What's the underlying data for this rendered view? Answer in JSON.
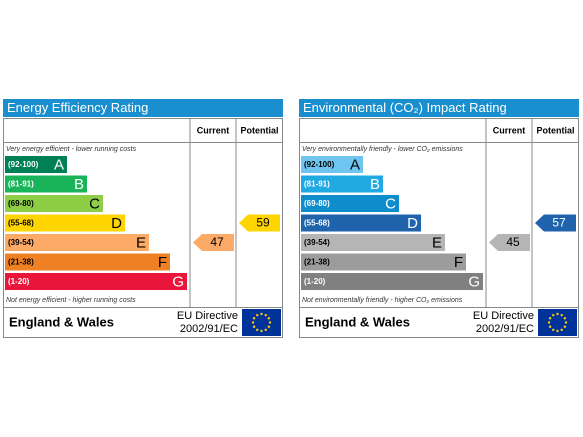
{
  "panels": [
    {
      "title": "Energy Efficiency Rating",
      "current_header": "Current",
      "potential_header": "Potential",
      "top_note": "Very energy efficient - lower running costs",
      "bottom_note": "Not energy efficient - higher running costs",
      "bands": [
        {
          "range": "(92-100)",
          "letter": "A",
          "color": "#008054"
        },
        {
          "range": "(81-91)",
          "letter": "B",
          "color": "#19b459"
        },
        {
          "range": "(69-80)",
          "letter": "C",
          "color": "#8dce46"
        },
        {
          "range": "(55-68)",
          "letter": "D",
          "color": "#ffd500"
        },
        {
          "range": "(39-54)",
          "letter": "E",
          "color": "#fcaa65"
        },
        {
          "range": "(21-38)",
          "letter": "F",
          "color": "#ef8023"
        },
        {
          "range": "(1-20)",
          "letter": "G",
          "color": "#e9153b"
        }
      ],
      "current": 47,
      "potential": 59,
      "region": "England & Wales",
      "directive_line1": "EU Directive",
      "directive_line2": "2002/91/EC"
    },
    {
      "title": "Environmental (CO₂) Impact Rating",
      "current_header": "Current",
      "potential_header": "Potential",
      "top_note": "Very environmentally friendly - lower CO₂ emissions",
      "bottom_note": "Not environmentally friendly - higher CO₂ emissions",
      "bands": [
        {
          "range": "(92-100)",
          "letter": "A",
          "color": "#6ec6f0"
        },
        {
          "range": "(81-91)",
          "letter": "B",
          "color": "#21a9e1"
        },
        {
          "range": "(69-80)",
          "letter": "C",
          "color": "#0f8ccb"
        },
        {
          "range": "(55-68)",
          "letter": "D",
          "color": "#1f63ad"
        },
        {
          "range": "(39-54)",
          "letter": "E",
          "color": "#b5b5b5"
        },
        {
          "range": "(21-38)",
          "letter": "F",
          "color": "#9c9c9c"
        },
        {
          "range": "(1-20)",
          "letter": "G",
          "color": "#808080"
        }
      ],
      "current": 45,
      "potential": 57,
      "region": "England & Wales",
      "directive_line1": "EU Directive",
      "directive_line2": "2002/91/EC"
    }
  ]
}
